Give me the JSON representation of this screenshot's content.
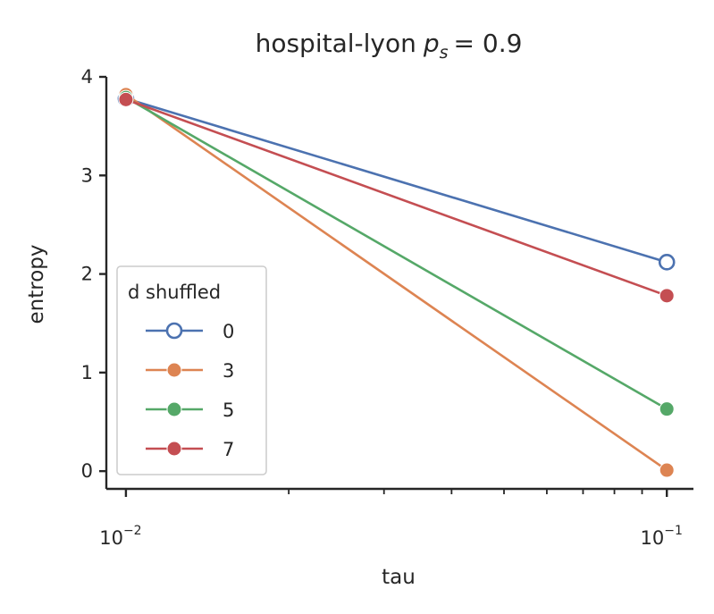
{
  "chart_data": {
    "type": "line",
    "title": "hospital-lyon",
    "title_math": {
      "symbol": "p",
      "subscript": "s",
      "equals": "= 0.9"
    },
    "xlabel": "tau",
    "ylabel": "entropy",
    "xscale": "log",
    "xlim": [
      0.0092,
      0.112
    ],
    "ylim": [
      -0.18,
      4.0
    ],
    "x": [
      0.01,
      0.1
    ],
    "x_tick_labels": [
      {
        "value": 0.01,
        "base": "10",
        "exp": "−2"
      },
      {
        "value": 0.1,
        "base": "10",
        "exp": "−1"
      }
    ],
    "x_minor_ticks": [
      0.02,
      0.03,
      0.04,
      0.05,
      0.06,
      0.07,
      0.08,
      0.09
    ],
    "y_ticks": [
      0,
      1,
      2,
      3,
      4
    ],
    "grid": false,
    "legend": {
      "title": "d shuffled",
      "placement": "lower-left"
    },
    "series": [
      {
        "name": "0",
        "values": [
          3.78,
          2.12
        ],
        "color": "#4c72b0",
        "marker": "open-circle"
      },
      {
        "name": "3",
        "values": [
          3.82,
          0.01
        ],
        "color": "#dd8452",
        "marker": "circle"
      },
      {
        "name": "5",
        "values": [
          3.79,
          0.63
        ],
        "color": "#55a868",
        "marker": "circle"
      },
      {
        "name": "7",
        "values": [
          3.77,
          1.78
        ],
        "color": "#c44e52",
        "marker": "circle"
      }
    ]
  }
}
